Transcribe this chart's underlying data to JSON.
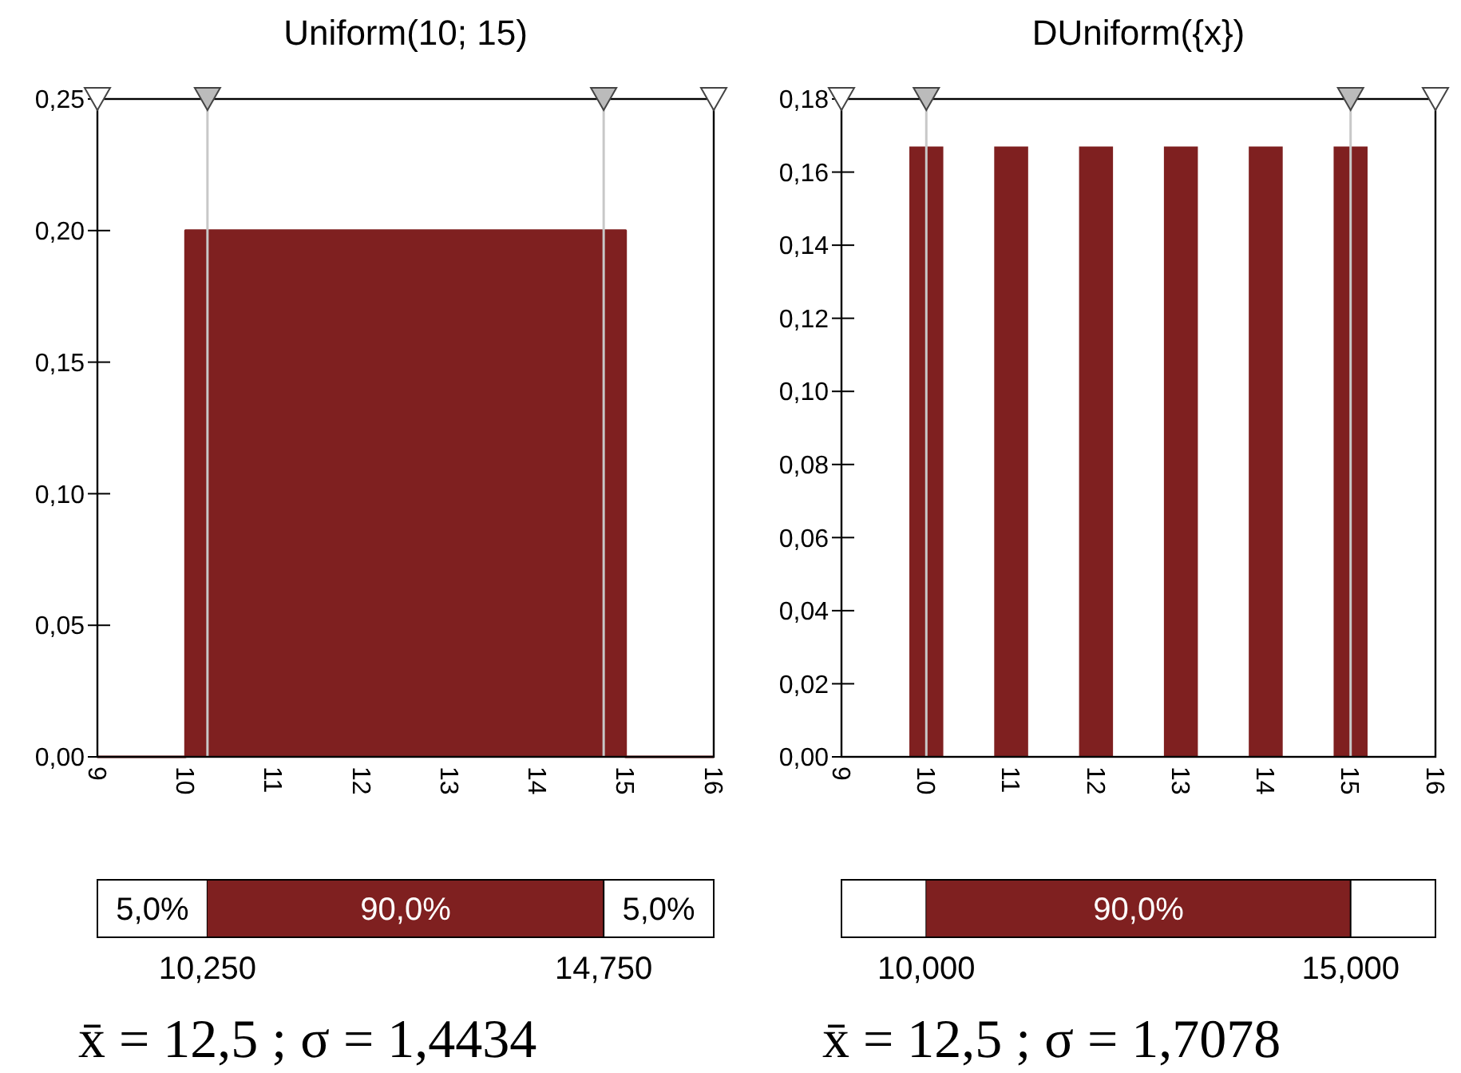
{
  "chart_data": [
    {
      "type": "area",
      "title": "Uniform(10; 15)",
      "x": [
        9,
        10,
        10,
        15,
        15,
        16
      ],
      "series": [
        {
          "color": "#7f2020",
          "values": [
            0,
            0,
            0.2,
            0.2,
            0,
            0
          ]
        }
      ],
      "xlim": [
        9,
        16
      ],
      "xticks": [
        9,
        10,
        11,
        12,
        13,
        14,
        15,
        16
      ],
      "ylim": [
        0,
        0.25
      ],
      "yticks": [
        {
          "value": 0,
          "label": "0,00"
        },
        {
          "value": 0.05,
          "label": "0,05"
        },
        {
          "value": 0.1,
          "label": "0,10"
        },
        {
          "value": 0.15,
          "label": "0,15"
        },
        {
          "value": 0.2,
          "label": "0,20"
        },
        {
          "value": 0.25,
          "label": "0,25"
        }
      ],
      "ref_lines": [
        {
          "axis": "x",
          "value": 10.25,
          "color": "#c8c8c8"
        },
        {
          "axis": "x",
          "value": 14.75,
          "color": "#c8c8c8"
        }
      ],
      "annotations": [
        "5,0%",
        "90,0%",
        "5,0%",
        "10,250",
        "14,750",
        "x̄ = 12,5 ; σ = 1,4434"
      ],
      "grid": false
    },
    {
      "type": "bar",
      "title": "DUniform({x})",
      "x": [
        10,
        11,
        12,
        13,
        14,
        15
      ],
      "series": [
        {
          "color": "#7f2020",
          "values": [
            0.167,
            0.167,
            0.167,
            0.167,
            0.167,
            0.167
          ]
        }
      ],
      "xlim": [
        9,
        16
      ],
      "xticks": [
        9,
        10,
        11,
        12,
        13,
        14,
        15,
        16
      ],
      "ylim": [
        0,
        0.18
      ],
      "yticks": [
        {
          "value": 0,
          "label": "0,00"
        },
        {
          "value": 0.02,
          "label": "0,02"
        },
        {
          "value": 0.04,
          "label": "0,04"
        },
        {
          "value": 0.06,
          "label": "0,06"
        },
        {
          "value": 0.08,
          "label": "0,08"
        },
        {
          "value": 0.1,
          "label": "0,10"
        },
        {
          "value": 0.12,
          "label": "0,12"
        },
        {
          "value": 0.14,
          "label": "0,14"
        },
        {
          "value": 0.16,
          "label": "0,16"
        },
        {
          "value": 0.18,
          "label": "0,18"
        }
      ],
      "ref_lines": [
        {
          "axis": "x",
          "value": 10,
          "color": "#c8c8c8"
        },
        {
          "axis": "x",
          "value": 15,
          "color": "#c8c8c8"
        }
      ],
      "annotations": [
        "90,0%",
        "10,000",
        "15,000",
        "x̄ = 12,5 ; σ = 1,7078"
      ],
      "grid": false
    }
  ]
}
